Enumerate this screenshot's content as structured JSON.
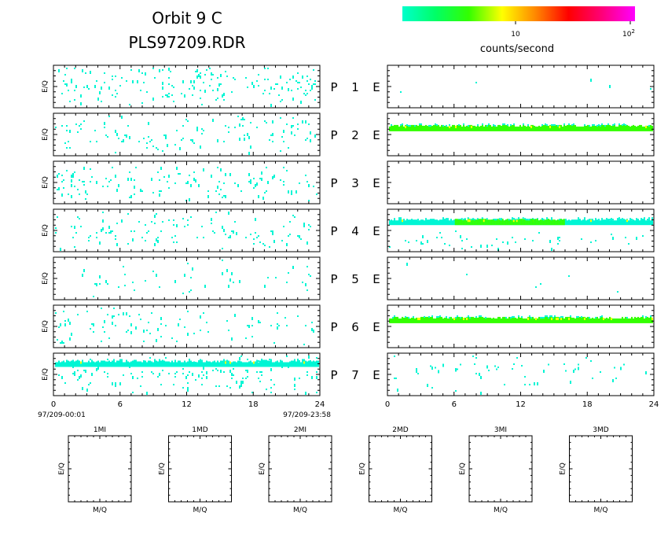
{
  "header": {
    "title": "Orbit 9 C",
    "subtitle": "PLS97209.RDR"
  },
  "colorbar": {
    "label": "counts/second",
    "tick_10": "10",
    "tick_100_base": "10",
    "tick_100_exp": "2",
    "stops": [
      "#00ffcc",
      "#00ff66",
      "#33ff00",
      "#ffff00",
      "#ff8800",
      "#ff0000",
      "#ff0077",
      "#ff00ff"
    ]
  },
  "colors": {
    "low": "#00f5d4",
    "mid": "#33ff00",
    "high": "#ffff00"
  },
  "rows": [
    {
      "p_label": "P",
      "e_label": "E",
      "number": "1"
    },
    {
      "p_label": "P",
      "e_label": "E",
      "number": "2"
    },
    {
      "p_label": "P",
      "e_label": "E",
      "number": "3"
    },
    {
      "p_label": "P",
      "e_label": "E",
      "number": "4"
    },
    {
      "p_label": "P",
      "e_label": "E",
      "number": "5"
    },
    {
      "p_label": "P",
      "e_label": "E",
      "number": "6"
    },
    {
      "p_label": "P",
      "e_label": "E",
      "number": "7"
    }
  ],
  "axes": {
    "ylabel": "E/Q",
    "x_ticks": [
      "0",
      "6",
      "12",
      "18",
      "24"
    ],
    "start_time": "97/209-00:01",
    "end_time": "97/209-23:58"
  },
  "small_panels": [
    {
      "title": "1MI",
      "ylabel": "E/Q",
      "xlabel": "M/Q"
    },
    {
      "title": "1MD",
      "ylabel": "E/Q",
      "xlabel": "M/Q"
    },
    {
      "title": "2MI",
      "ylabel": "E/Q",
      "xlabel": "M/Q"
    },
    {
      "title": "2MD",
      "ylabel": "E/Q",
      "xlabel": "M/Q"
    },
    {
      "title": "3MI",
      "ylabel": "E/Q",
      "xlabel": "M/Q"
    },
    {
      "title": "3MD",
      "ylabel": "E/Q",
      "xlabel": "M/Q"
    }
  ],
  "chart_data": {
    "type": "heatmap",
    "x_range": [
      0,
      24
    ],
    "x_ticks": [
      0,
      6,
      12,
      18,
      24
    ],
    "colorbar_scale": "log",
    "colorbar_ticks": [
      10,
      100
    ],
    "left_panels": [
      {
        "panel": "P1",
        "density": 0.55
      },
      {
        "panel": "P2",
        "density": 0.3
      },
      {
        "panel": "P3",
        "density": 0.45
      },
      {
        "panel": "P4",
        "density": 0.3
      },
      {
        "panel": "P5",
        "density": 0.2
      },
      {
        "panel": "P6",
        "density": 0.3
      },
      {
        "panel": "P7",
        "density": 0.45,
        "band_level": 0.25
      }
    ],
    "right_panels": [
      {
        "panel": "E1",
        "density": 0.01
      },
      {
        "panel": "E2",
        "band_level": 0.35,
        "band_color": "mid",
        "x_start": 0,
        "x_end": 24
      },
      {
        "panel": "E3",
        "density": 0.0
      },
      {
        "panel": "E4",
        "band_level": 0.3,
        "band_color": "low",
        "x_start": 0,
        "x_end": 24,
        "secondary_band_x": [
          6,
          16
        ]
      },
      {
        "panel": "E5",
        "density": 0.01
      },
      {
        "panel": "E6",
        "band_level": 0.35,
        "band_color": "mid",
        "x_start": 0,
        "x_end": 24
      },
      {
        "panel": "E7",
        "density": 0.15,
        "band_level": 0.3
      }
    ]
  }
}
